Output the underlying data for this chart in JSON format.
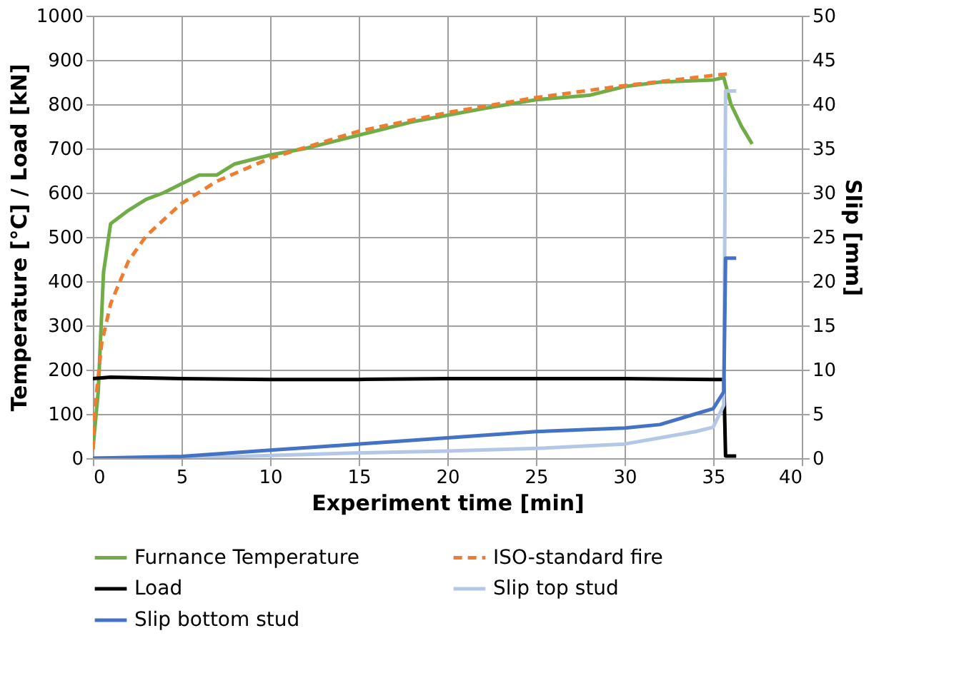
{
  "chart_data": {
    "type": "line",
    "xlabel": "Experiment time [min]",
    "ylabel": "Temperature [°C] / Load [kN]",
    "y2label": "Slip [mm]",
    "xlim": [
      0,
      40
    ],
    "xticks": [
      0,
      5,
      10,
      15,
      20,
      25,
      30,
      35,
      40
    ],
    "ylim": [
      0,
      1000
    ],
    "yticks": [
      0,
      100,
      200,
      300,
      400,
      500,
      600,
      700,
      800,
      900,
      1000
    ],
    "y2lim": [
      0,
      50
    ],
    "y2ticks": [
      0,
      5,
      10,
      15,
      20,
      25,
      30,
      35,
      40,
      45,
      50
    ],
    "grid": true,
    "legend": "bottom",
    "line_style": "solid",
    "marker": "none",
    "series": [
      {
        "name": "Furnance Temperature",
        "color": "#70ad47",
        "x": [
          0,
          0.3,
          0.6,
          1,
          2,
          3,
          4,
          5,
          6,
          7,
          8,
          10,
          12,
          14,
          16,
          18,
          20,
          22,
          25,
          28,
          30,
          32,
          35,
          35.6,
          36,
          36.6,
          37.2
        ],
        "values": [
          20,
          150,
          420,
          530,
          560,
          585,
          600,
          620,
          640,
          640,
          665,
          685,
          700,
          720,
          740,
          760,
          775,
          790,
          810,
          820,
          840,
          850,
          855,
          860,
          800,
          750,
          710
        ]
      },
      {
        "name": "ISO-standard fire",
        "color": "#ed7d31",
        "line_style": "dashed",
        "x": [
          0,
          0.1,
          0.5,
          1,
          2,
          3,
          5,
          7,
          10,
          15,
          20,
          25,
          30,
          35,
          36
        ],
        "values": [
          20,
          108,
          261,
          349,
          445,
          502,
          576,
          626,
          678,
          739,
          781,
          815,
          842,
          865,
          869
        ]
      },
      {
        "name": "Load",
        "color": "#000000",
        "x": [
          0,
          1,
          5,
          10,
          15,
          20,
          25,
          30,
          35,
          35.6,
          35.7,
          36.3
        ],
        "values": [
          180,
          183,
          180,
          178,
          178,
          180,
          180,
          180,
          178,
          178,
          5,
          5
        ]
      },
      {
        "name": "Slip top stud",
        "color": "#b4c7e7",
        "axis": "y2",
        "x": [
          0,
          5,
          10,
          15,
          20,
          25,
          30,
          32,
          34,
          35,
          35.6,
          35.7,
          36.3
        ],
        "values": [
          0,
          0,
          0.3,
          0.6,
          0.8,
          1.1,
          1.6,
          2.3,
          3,
          3.5,
          6,
          41.5,
          41.5
        ]
      },
      {
        "name": "Slip bottom stud",
        "color": "#4472c4",
        "axis": "y2",
        "x": [
          0,
          5,
          10,
          15,
          20,
          25,
          30,
          32,
          34,
          35,
          35.6,
          35.7,
          36.3
        ],
        "values": [
          0,
          0.2,
          0.9,
          1.6,
          2.3,
          3,
          3.4,
          3.8,
          5,
          5.6,
          7.5,
          22.6,
          22.6
        ]
      }
    ]
  }
}
